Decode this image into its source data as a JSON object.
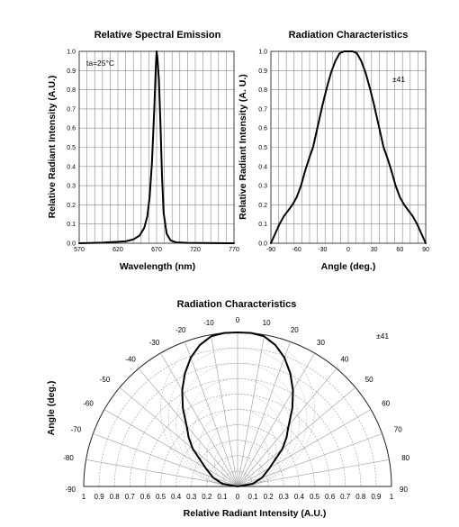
{
  "chart_data": [
    {
      "type": "line",
      "title": "Relative Spectral Emission",
      "xlabel": "Wavelength (nm)",
      "ylabel": "Relative Radiant Intensity (A.U.)",
      "xlim": [
        570,
        770
      ],
      "ylim": [
        0,
        1.0
      ],
      "xticks": [
        "570",
        "620",
        "670",
        "720",
        "770"
      ],
      "yticks": [
        "0.0",
        "0.1",
        "0.2",
        "0.3",
        "0.4",
        "0.5",
        "0.6",
        "0.7",
        "0.8",
        "0.9",
        "1.0"
      ],
      "grid": true,
      "annotation": "ta=25°C",
      "series": [
        {
          "x": [
            570,
            600,
            630,
            640,
            648,
            654,
            658,
            661,
            664,
            667,
            669,
            670,
            671,
            673,
            675,
            677,
            679,
            683,
            688,
            695,
            710,
            770
          ],
          "values": [
            0,
            0.003,
            0.01,
            0.02,
            0.04,
            0.08,
            0.14,
            0.24,
            0.42,
            0.7,
            0.92,
            1.0,
            0.97,
            0.85,
            0.62,
            0.35,
            0.16,
            0.05,
            0.015,
            0.005,
            0.002,
            0
          ]
        }
      ]
    },
    {
      "type": "line",
      "title": "Radiation Characteristics",
      "xlabel": "Angle (deg.)",
      "ylabel": "Relative Radiant Intensity (A. U.)",
      "xlim": [
        -90,
        90
      ],
      "ylim": [
        0,
        1.0
      ],
      "xticks": [
        "-90",
        "-60",
        "-30",
        "0",
        "30",
        "60",
        "90"
      ],
      "yticks": [
        "0.0",
        "0.1",
        "0.2",
        "0.3",
        "0.4",
        "0.5",
        "0.6",
        "0.7",
        "0.8",
        "0.9",
        "1.0"
      ],
      "grid": true,
      "annotation": "±41",
      "series": [
        {
          "x": [
            -90,
            -85,
            -80,
            -75,
            -70,
            -65,
            -60,
            -55,
            -50,
            -45,
            -41,
            -35,
            -30,
            -25,
            -20,
            -15,
            -10,
            -5,
            0,
            5,
            10,
            15,
            20,
            25,
            30,
            35,
            41,
            45,
            50,
            55,
            60,
            65,
            70,
            75,
            80,
            85,
            90
          ],
          "values": [
            0.0,
            0.05,
            0.1,
            0.14,
            0.17,
            0.2,
            0.24,
            0.3,
            0.38,
            0.45,
            0.5,
            0.62,
            0.72,
            0.81,
            0.89,
            0.95,
            0.99,
            1.0,
            1.0,
            1.0,
            0.99,
            0.95,
            0.89,
            0.81,
            0.72,
            0.62,
            0.5,
            0.45,
            0.38,
            0.3,
            0.24,
            0.2,
            0.17,
            0.14,
            0.1,
            0.05,
            0.0
          ]
        }
      ]
    },
    {
      "type": "polar",
      "title": "Radiation Characteristics",
      "xlabel": "Relative Radiant Intensity (A.U.)",
      "ylabel": "Angle (deg.)",
      "annotation": "±41",
      "radial_ticks": [
        "1",
        "0.9",
        "0.8",
        "0.7",
        "0.6",
        "0.5",
        "0.4",
        "0.3",
        "0.2",
        "0.1",
        "0",
        "0.1",
        "0.2",
        "0.3",
        "0.4",
        "0.5",
        "0.6",
        "0.7",
        "0.8",
        "0.9",
        "1"
      ],
      "angle_labels": [
        {
          "angle": 0,
          "label": "0"
        },
        {
          "angle": 10,
          "label": "10"
        },
        {
          "angle": 20,
          "label": "20"
        },
        {
          "angle": 30,
          "label": "30"
        },
        {
          "angle": 40,
          "label": "40"
        },
        {
          "angle": 50,
          "label": "50"
        },
        {
          "angle": 60,
          "label": "60"
        },
        {
          "angle": 70,
          "label": "70"
        },
        {
          "angle": 80,
          "label": "80"
        },
        {
          "angle": 90,
          "label": "90"
        },
        {
          "angle": -10,
          "label": "-10"
        },
        {
          "angle": -20,
          "label": "-20"
        },
        {
          "angle": -30,
          "label": "-30"
        },
        {
          "angle": -40,
          "label": "-40"
        },
        {
          "angle": -50,
          "label": "-50"
        },
        {
          "angle": -60,
          "label": "-60"
        },
        {
          "angle": -70,
          "label": "-70"
        },
        {
          "angle": -80,
          "label": "-80"
        },
        {
          "angle": -90,
          "label": "-90"
        }
      ],
      "grid": true,
      "series": [
        {
          "angle": [
            -90,
            -80,
            -70,
            -60,
            -50,
            -45,
            -41,
            -35,
            -30,
            -25,
            -20,
            -15,
            -10,
            -5,
            0,
            5,
            10,
            15,
            20,
            25,
            30,
            35,
            41,
            45,
            50,
            60,
            70,
            80,
            90
          ],
          "values": [
            0.0,
            0.1,
            0.17,
            0.24,
            0.38,
            0.45,
            0.5,
            0.62,
            0.72,
            0.81,
            0.89,
            0.95,
            0.99,
            1.0,
            1.0,
            1.0,
            0.99,
            0.95,
            0.89,
            0.81,
            0.72,
            0.62,
            0.5,
            0.45,
            0.38,
            0.24,
            0.17,
            0.1,
            0.0
          ]
        }
      ]
    }
  ]
}
